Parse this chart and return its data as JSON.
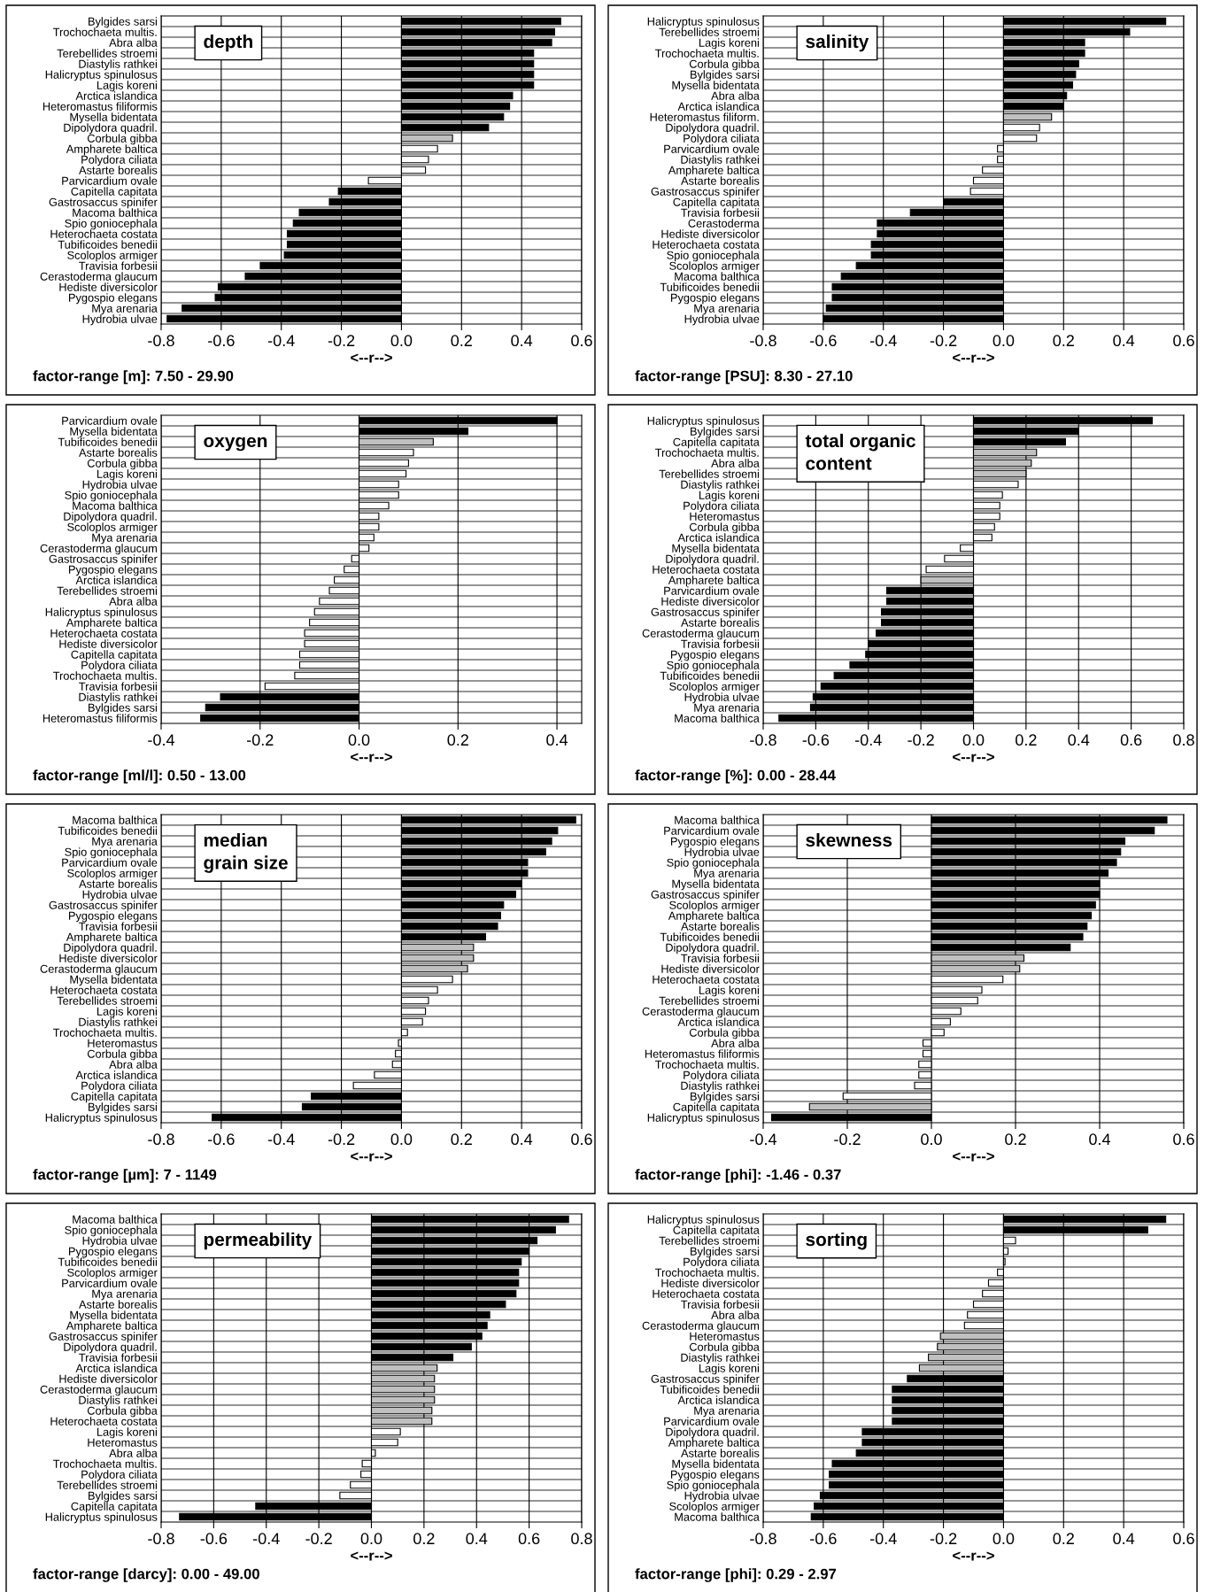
{
  "chart_data": [
    {
      "type": "bar",
      "orientation": "horizontal",
      "title": "depth",
      "xlabel": "<--r-->",
      "annotations": [
        "factor-range [m]: 7.50 - 29.90"
      ],
      "grid": true,
      "legend": false,
      "xlim": [
        -0.8,
        0.6
      ],
      "xticks": [
        {
          "value": -0.8,
          "label": "-0.8"
        },
        {
          "value": -0.6,
          "label": "-0.6"
        },
        {
          "value": -0.4,
          "label": "-0.4"
        },
        {
          "value": -0.2,
          "label": "-0.2"
        },
        {
          "value": 0,
          "label": "0.0"
        },
        {
          "value": 0.2,
          "label": "0.2"
        },
        {
          "value": 0.4,
          "label": "0.4"
        },
        {
          "value": 0.6,
          "label": "0.6"
        }
      ],
      "categories": [
        "Bylgides sarsi",
        "Trochochaeta multis.",
        "Abra alba",
        "Terebellides stroemi",
        "Diastylis rathkei",
        "Halicryptus spinulosus",
        "Lagis koreni",
        "Arctica islandica",
        "Heteromastus filiformis",
        "Mysella bidentata",
        "Dipolydora quadril.",
        "Corbula gibba",
        "Ampharete baltica",
        "Polydora ciliata",
        "Astarte borealis",
        "Parvicardium ovale",
        "Capitella capitata",
        "Gastrosaccus spinifer",
        "Macoma balthica",
        "Spio goniocephala",
        "Heterochaeta costata",
        "Tubificoides benedii",
        "Scoloplos armiger",
        "Travisia forbesii",
        "Cerastoderma glaucum",
        "Hediste diversicolor",
        "Pygospio elegans",
        "Mya arenaria",
        "Hydrobia ulvae"
      ],
      "values": [
        0.53,
        0.51,
        0.5,
        0.44,
        0.44,
        0.44,
        0.44,
        0.37,
        0.36,
        0.34,
        0.29,
        0.17,
        0.12,
        0.09,
        0.08,
        -0.11,
        -0.21,
        -0.24,
        -0.34,
        -0.36,
        -0.38,
        -0.38,
        -0.39,
        -0.47,
        -0.52,
        -0.61,
        -0.62,
        -0.73,
        -0.78
      ],
      "colors": [
        "#000000",
        "#000000",
        "#000000",
        "#000000",
        "#000000",
        "#000000",
        "#000000",
        "#000000",
        "#000000",
        "#000000",
        "#000000",
        "#c0c0c0",
        "#ffffff",
        "#ffffff",
        "#ffffff",
        "#ffffff",
        "#000000",
        "#000000",
        "#000000",
        "#000000",
        "#000000",
        "#000000",
        "#000000",
        "#000000",
        "#000000",
        "#000000",
        "#000000",
        "#000000",
        "#000000"
      ]
    },
    {
      "type": "bar",
      "orientation": "horizontal",
      "title": "salinity",
      "xlabel": "<--r-->",
      "annotations": [
        "factor-range [PSU]: 8.30 - 27.10"
      ],
      "grid": true,
      "legend": false,
      "xlim": [
        -0.8,
        0.6
      ],
      "xticks": [
        {
          "value": -0.8,
          "label": "-0.8"
        },
        {
          "value": -0.6,
          "label": "-0.6"
        },
        {
          "value": -0.4,
          "label": "-0.4"
        },
        {
          "value": -0.2,
          "label": "-0.2"
        },
        {
          "value": 0,
          "label": "0.0"
        },
        {
          "value": 0.2,
          "label": "0.2"
        },
        {
          "value": 0.4,
          "label": "0.4"
        },
        {
          "value": 0.6,
          "label": "0.6"
        }
      ],
      "categories": [
        "Halicryptus spinulosus",
        "Terebellides stroemi",
        "Lagis koreni",
        "Trochochaeta multis.",
        "Corbula gibba",
        "Bylgides sarsi",
        "Mysella bidentata",
        "Abra alba",
        "Arctica islandica",
        "Heteromastus filiform.",
        "Dipolydora quadril.",
        "Polydora ciliata",
        "Parvicardium ovale",
        "Diastylis rathkei",
        "Ampharete baltica",
        "Astarte borealis",
        "Gastrosaccus spinifer",
        "Capitella capitata",
        "Travisia forbesii",
        "Cerastoderma",
        "Hediste diversicolor",
        "Heterochaeta costata",
        "Spio goniocephala",
        "Scoloplos armiger",
        "Macoma balthica",
        "Tubificoides benedii",
        "Pygospio elegans",
        "Mya arenaria",
        "Hydrobia ulvae"
      ],
      "values": [
        0.54,
        0.42,
        0.27,
        0.27,
        0.25,
        0.24,
        0.23,
        0.21,
        0.2,
        0.16,
        0.12,
        0.11,
        -0.02,
        -0.02,
        -0.07,
        -0.1,
        -0.11,
        -0.2,
        -0.31,
        -0.42,
        -0.42,
        -0.44,
        -0.44,
        -0.49,
        -0.54,
        -0.57,
        -0.57,
        -0.59,
        -0.6
      ],
      "colors": [
        "#000000",
        "#000000",
        "#000000",
        "#000000",
        "#000000",
        "#000000",
        "#000000",
        "#000000",
        "#000000",
        "#c0c0c0",
        "#ffffff",
        "#ffffff",
        "#ffffff",
        "#ffffff",
        "#ffffff",
        "#ffffff",
        "#ffffff",
        "#000000",
        "#000000",
        "#000000",
        "#000000",
        "#000000",
        "#000000",
        "#000000",
        "#000000",
        "#000000",
        "#000000",
        "#000000",
        "#000000"
      ]
    },
    {
      "type": "bar",
      "orientation": "horizontal",
      "title": "oxygen",
      "xlabel": "<--r-->",
      "annotations": [
        "factor-range [ml/l]: 0.50 - 13.00"
      ],
      "grid": true,
      "legend": false,
      "xlim": [
        -0.4,
        0.45
      ],
      "xticks": [
        {
          "value": -0.4,
          "label": "-0.4"
        },
        {
          "value": -0.2,
          "label": "-0.2"
        },
        {
          "value": 0,
          "label": "0.0"
        },
        {
          "value": 0.2,
          "label": "0.2"
        },
        {
          "value": 0.4,
          "label": "0.4"
        }
      ],
      "categories": [
        "Parvicardium ovale",
        "Mysella bidentata",
        "Tubificoides benedii",
        "Astarte borealis",
        "Corbula gibba",
        "Lagis koreni",
        "Hydrobia ulvae",
        "Spio goniocephala",
        "Macoma balthica",
        "Dipolydora quadril.",
        "Scoloplos armiger",
        "Mya arenaria",
        "Cerastoderma glaucum",
        "Gastrosaccus spinifer",
        "Pygospio elegans",
        "Arctica islandica",
        "Terebellides stroemi",
        "Abra alba",
        "Halicryptus spinulosus",
        "Ampharete baltica",
        "Heterochaeta costata",
        "Hediste diversicolor",
        "Capitella capitata",
        "Polydora ciliata",
        "Trochochaeta multis.",
        "Travisia forbesii",
        "Diastylis rathkei",
        "Bylgides sarsi",
        "Heteromastus filiformis"
      ],
      "values": [
        0.4,
        0.22,
        0.15,
        0.11,
        0.1,
        0.095,
        0.08,
        0.08,
        0.06,
        0.04,
        0.04,
        0.03,
        0.02,
        -0.015,
        -0.03,
        -0.05,
        -0.06,
        -0.08,
        -0.09,
        -0.1,
        -0.11,
        -0.11,
        -0.12,
        -0.12,
        -0.13,
        -0.19,
        -0.28,
        -0.31,
        -0.32
      ],
      "colors": [
        "#000000",
        "#000000",
        "#c0c0c0",
        "#ffffff",
        "#ffffff",
        "#ffffff",
        "#ffffff",
        "#ffffff",
        "#ffffff",
        "#ffffff",
        "#ffffff",
        "#ffffff",
        "#ffffff",
        "#ffffff",
        "#ffffff",
        "#ffffff",
        "#ffffff",
        "#ffffff",
        "#ffffff",
        "#ffffff",
        "#ffffff",
        "#ffffff",
        "#ffffff",
        "#ffffff",
        "#ffffff",
        "#ffffff",
        "#000000",
        "#000000",
        "#000000"
      ]
    },
    {
      "type": "bar",
      "orientation": "horizontal",
      "title": "total organic\ncontent",
      "xlabel": "<--r-->",
      "annotations": [
        "factor-range [%]: 0.00 - 28.44"
      ],
      "grid": true,
      "legend": false,
      "xlim": [
        -0.8,
        0.8
      ],
      "xticks": [
        {
          "value": -0.8,
          "label": "-0.8"
        },
        {
          "value": -0.6,
          "label": "-0.6"
        },
        {
          "value": -0.4,
          "label": "-0.4"
        },
        {
          "value": -0.2,
          "label": "-0.2"
        },
        {
          "value": 0,
          "label": "0.0"
        },
        {
          "value": 0.2,
          "label": "0.2"
        },
        {
          "value": 0.4,
          "label": "0.4"
        },
        {
          "value": 0.6,
          "label": "0.6"
        },
        {
          "value": 0.8,
          "label": "0.8"
        }
      ],
      "categories": [
        "Halicryptus spinulosus",
        "Bylgides sarsi",
        "Capitella capitata",
        "Trochochaeta multis.",
        "Abra alba",
        "Terebellides stroemi",
        "Diastylis rathkei",
        "Lagis koreni",
        "Polydora ciliata",
        "Heteromastus",
        "Corbula gibba",
        "Arctica islandica",
        "Mysella bidentata",
        "Dipolydora quadril.",
        "Heterochaeta costata",
        "Ampharete baltica",
        "Parvicardium ovale",
        "Hediste diversicolor",
        "Gastrosaccus spinifer",
        "Astarte borealis",
        "Cerastoderma glaucum",
        "Travisia forbesii",
        "Pygospio elegans",
        "Spio goniocephala",
        "Tubificoides benedii",
        "Scoloplos armiger",
        "Hydrobia ulvae",
        "Mya arenaria",
        "Macoma balthica"
      ],
      "values": [
        0.68,
        0.4,
        0.35,
        0.24,
        0.22,
        0.2,
        0.17,
        0.11,
        0.1,
        0.1,
        0.08,
        0.07,
        -0.05,
        -0.11,
        -0.18,
        -0.2,
        -0.33,
        -0.33,
        -0.35,
        -0.35,
        -0.37,
        -0.4,
        -0.41,
        -0.47,
        -0.53,
        -0.58,
        -0.61,
        -0.62,
        -0.74
      ],
      "colors": [
        "#000000",
        "#000000",
        "#000000",
        "#c0c0c0",
        "#c0c0c0",
        "#c0c0c0",
        "#ffffff",
        "#ffffff",
        "#ffffff",
        "#ffffff",
        "#ffffff",
        "#ffffff",
        "#ffffff",
        "#ffffff",
        "#ffffff",
        "#c0c0c0",
        "#000000",
        "#000000",
        "#000000",
        "#000000",
        "#000000",
        "#000000",
        "#000000",
        "#000000",
        "#000000",
        "#000000",
        "#000000",
        "#000000",
        "#000000"
      ]
    },
    {
      "type": "bar",
      "orientation": "horizontal",
      "title": "median\ngrain size",
      "xlabel": "<--r-->",
      "annotations": [
        "factor-range [µm]: 7 - 1149"
      ],
      "grid": true,
      "legend": false,
      "xlim": [
        -0.8,
        0.6
      ],
      "xticks": [
        {
          "value": -0.8,
          "label": "-0.8"
        },
        {
          "value": -0.6,
          "label": "-0.6"
        },
        {
          "value": -0.4,
          "label": "-0.4"
        },
        {
          "value": -0.2,
          "label": "-0.2"
        },
        {
          "value": 0,
          "label": "0.0"
        },
        {
          "value": 0.2,
          "label": "0.2"
        },
        {
          "value": 0.4,
          "label": "0.4"
        },
        {
          "value": 0.6,
          "label": "0.6"
        }
      ],
      "categories": [
        "Macoma balthica",
        "Tubificoides benedii",
        "Mya arenaria",
        "Spio goniocephala",
        "Parvicardium ovale",
        "Scoloplos armiger",
        "Astarte borealis",
        "Hydrobia ulvae",
        "Gastrosaccus spinifer",
        "Pygospio elegans",
        "Travisia forbesii",
        "Ampharete baltica",
        "Dipolydora quadril.",
        "Hediste diversicolor",
        "Cerastoderma glaucum",
        "Mysella bidentata",
        "Heterochaeta costata",
        "Terebellides stroemi",
        "Lagis koreni",
        "Diastylis rathkei",
        "Trochochaeta multis.",
        "Heteromastus",
        "Corbula gibba",
        "Abra alba",
        "Arctica islandica",
        "Polydora ciliata",
        "Capitella capitata",
        "Bylgides sarsi",
        "Halicryptus spinulosus"
      ],
      "values": [
        0.58,
        0.52,
        0.5,
        0.48,
        0.42,
        0.42,
        0.4,
        0.38,
        0.34,
        0.33,
        0.32,
        0.28,
        0.24,
        0.24,
        0.22,
        0.17,
        0.12,
        0.09,
        0.08,
        0.07,
        0.02,
        -0.01,
        -0.02,
        -0.03,
        -0.09,
        -0.16,
        -0.3,
        -0.33,
        -0.63
      ],
      "colors": [
        "#000000",
        "#000000",
        "#000000",
        "#000000",
        "#000000",
        "#000000",
        "#000000",
        "#000000",
        "#000000",
        "#000000",
        "#000000",
        "#000000",
        "#c0c0c0",
        "#c0c0c0",
        "#c0c0c0",
        "#ffffff",
        "#ffffff",
        "#ffffff",
        "#ffffff",
        "#ffffff",
        "#ffffff",
        "#ffffff",
        "#ffffff",
        "#ffffff",
        "#ffffff",
        "#ffffff",
        "#000000",
        "#000000",
        "#000000"
      ]
    },
    {
      "type": "bar",
      "orientation": "horizontal",
      "title": "skewness",
      "xlabel": "<--r-->",
      "annotations": [
        "factor-range [phi]: -1.46 - 0.37"
      ],
      "grid": true,
      "legend": false,
      "xlim": [
        -0.4,
        0.6
      ],
      "xticks": [
        {
          "value": -0.4,
          "label": "-0.4"
        },
        {
          "value": -0.2,
          "label": "-0.2"
        },
        {
          "value": 0,
          "label": "0.0"
        },
        {
          "value": 0.2,
          "label": "0.2"
        },
        {
          "value": 0.4,
          "label": "0.4"
        },
        {
          "value": 0.6,
          "label": "0.6"
        }
      ],
      "categories": [
        "Macoma balthica",
        "Parvicardium ovale",
        "Pygospio elegans",
        "Hydrobia ulvae",
        "Spio goniocephala",
        "Mya arenaria",
        "Mysella bidentata",
        "Gastrosaccus spinifer",
        "Scoloplos armiger",
        "Ampharete baltica",
        "Astarte borealis",
        "Tubificoides benedii",
        "Dipolydora quadril.",
        "Travisia forbesii",
        "Hediste diversicolor",
        "Heterochaeta costata",
        "Lagis koreni",
        "Terebellides stroemi",
        "Cerastoderma glaucum",
        "Arctica islandica",
        "Corbula gibba",
        "Abra alba",
        "Heteromastus filiformis",
        "Trochochaeta multis.",
        "Polydora ciliata",
        "Diastylis rathkei",
        "Bylgides sarsi",
        "Capitella capitata",
        "Halicryptus spinulosus"
      ],
      "values": [
        0.56,
        0.53,
        0.46,
        0.45,
        0.44,
        0.42,
        0.4,
        0.4,
        0.39,
        0.38,
        0.37,
        0.36,
        0.33,
        0.22,
        0.21,
        0.17,
        0.12,
        0.11,
        0.07,
        0.045,
        0.03,
        -0.02,
        -0.02,
        -0.03,
        -0.03,
        -0.04,
        -0.21,
        -0.29,
        -0.38
      ],
      "colors": [
        "#000000",
        "#000000",
        "#000000",
        "#000000",
        "#000000",
        "#000000",
        "#000000",
        "#000000",
        "#000000",
        "#000000",
        "#000000",
        "#000000",
        "#000000",
        "#c0c0c0",
        "#c0c0c0",
        "#ffffff",
        "#ffffff",
        "#ffffff",
        "#ffffff",
        "#ffffff",
        "#ffffff",
        "#ffffff",
        "#ffffff",
        "#ffffff",
        "#ffffff",
        "#ffffff",
        "#ffffff",
        "#c0c0c0",
        "#000000"
      ]
    },
    {
      "type": "bar",
      "orientation": "horizontal",
      "title": "permeability",
      "xlabel": "<--r-->",
      "annotations": [
        "factor-range [darcy]: 0.00 - 49.00"
      ],
      "grid": true,
      "legend": false,
      "xlim": [
        -0.8,
        0.8
      ],
      "xticks": [
        {
          "value": -0.8,
          "label": "-0.8"
        },
        {
          "value": -0.6,
          "label": "-0.6"
        },
        {
          "value": -0.4,
          "label": "-0.4"
        },
        {
          "value": -0.2,
          "label": "-0.2"
        },
        {
          "value": 0,
          "label": "0.0"
        },
        {
          "value": 0.2,
          "label": "0.2"
        },
        {
          "value": 0.4,
          "label": "0.4"
        },
        {
          "value": 0.6,
          "label": "0.6"
        },
        {
          "value": 0.8,
          "label": "0.8"
        }
      ],
      "categories": [
        "Macoma balthica",
        "Spio goniocephala",
        "Hydrobia ulvae",
        "Pygospio elegans",
        "Tubificoides benedii",
        "Scoloplos armiger",
        "Parvicardium ovale",
        "Mya arenaria",
        "Astarte borealis",
        "Mysella bidentata",
        "Ampharete baltica",
        "Gastrosaccus spinifer",
        "Dipolydora quadril.",
        "Travisia forbesii",
        "Arctica islandica",
        "Hediste diversicolor",
        "Cerastoderma glaucum",
        "Diastylis rathkei",
        "Corbula gibba",
        "Heterochaeta costata",
        "Lagis koreni",
        "Heteromastus",
        "Abra alba",
        "Trochochaeta multis.",
        "Polydora ciliata",
        "Terebellides stroemi",
        "Bylgides sarsi",
        "Capitella capitata",
        "Halicryptus spinulosus"
      ],
      "values": [
        0.75,
        0.7,
        0.63,
        0.6,
        0.57,
        0.56,
        0.56,
        0.55,
        0.51,
        0.45,
        0.44,
        0.42,
        0.38,
        0.31,
        0.25,
        0.24,
        0.24,
        0.24,
        0.23,
        0.23,
        0.11,
        0.1,
        0.015,
        -0.035,
        -0.04,
        -0.08,
        -0.12,
        -0.44,
        -0.73
      ],
      "colors": [
        "#000000",
        "#000000",
        "#000000",
        "#000000",
        "#000000",
        "#000000",
        "#000000",
        "#000000",
        "#000000",
        "#000000",
        "#000000",
        "#000000",
        "#000000",
        "#000000",
        "#c0c0c0",
        "#c0c0c0",
        "#c0c0c0",
        "#c0c0c0",
        "#c0c0c0",
        "#c0c0c0",
        "#ffffff",
        "#ffffff",
        "#ffffff",
        "#ffffff",
        "#ffffff",
        "#ffffff",
        "#ffffff",
        "#000000",
        "#000000"
      ]
    },
    {
      "type": "bar",
      "orientation": "horizontal",
      "title": "sorting",
      "xlabel": "<--r-->",
      "annotations": [
        "factor-range [phi]: 0.29 - 2.97"
      ],
      "grid": true,
      "legend": false,
      "xlim": [
        -0.8,
        0.6
      ],
      "xticks": [
        {
          "value": -0.8,
          "label": "-0.8"
        },
        {
          "value": -0.6,
          "label": "-0.6"
        },
        {
          "value": -0.4,
          "label": "-0.4"
        },
        {
          "value": -0.2,
          "label": "-0.2"
        },
        {
          "value": 0,
          "label": "0.0"
        },
        {
          "value": 0.2,
          "label": "0.2"
        },
        {
          "value": 0.4,
          "label": "0.4"
        },
        {
          "value": 0.6,
          "label": "0.6"
        }
      ],
      "categories": [
        "Halicryptus spinulosus",
        "Capitella capitata",
        "Terebellides stroemi",
        "Bylgides sarsi",
        "Polydora ciliata",
        "Trochochaeta multis.",
        "Hediste diversicolor",
        "Heterochaeta costata",
        "Travisia forbesii",
        "Abra alba",
        "Cerastoderma glaucum",
        "Heteromastus",
        "Corbula gibba",
        "Diastylis rathkei",
        "Lagis koreni",
        "Gastrosaccus spinifer",
        "Tubificoides benedii",
        "Arctica islandica",
        "Mya arenaria",
        "Parvicardium ovale",
        "Dipolydora quadril.",
        "Ampharete baltica",
        "Astarte borealis",
        "Mysella bidentata",
        "Pygospio elegans",
        "Spio goniocephala",
        "Hydrobia ulvae",
        "Scoloplos armiger",
        "Macoma balthica"
      ],
      "values": [
        0.54,
        0.48,
        0.04,
        0.015,
        0.005,
        -0.02,
        -0.05,
        -0.07,
        -0.1,
        -0.12,
        -0.13,
        -0.21,
        -0.22,
        -0.25,
        -0.28,
        -0.32,
        -0.37,
        -0.37,
        -0.37,
        -0.37,
        -0.47,
        -0.47,
        -0.49,
        -0.57,
        -0.58,
        -0.58,
        -0.61,
        -0.63,
        -0.64
      ],
      "colors": [
        "#000000",
        "#000000",
        "#ffffff",
        "#ffffff",
        "#ffffff",
        "#ffffff",
        "#ffffff",
        "#ffffff",
        "#ffffff",
        "#ffffff",
        "#ffffff",
        "#c0c0c0",
        "#c0c0c0",
        "#c0c0c0",
        "#c0c0c0",
        "#000000",
        "#000000",
        "#000000",
        "#000000",
        "#000000",
        "#000000",
        "#000000",
        "#000000",
        "#000000",
        "#000000",
        "#000000",
        "#000000",
        "#000000",
        "#000000"
      ]
    }
  ]
}
